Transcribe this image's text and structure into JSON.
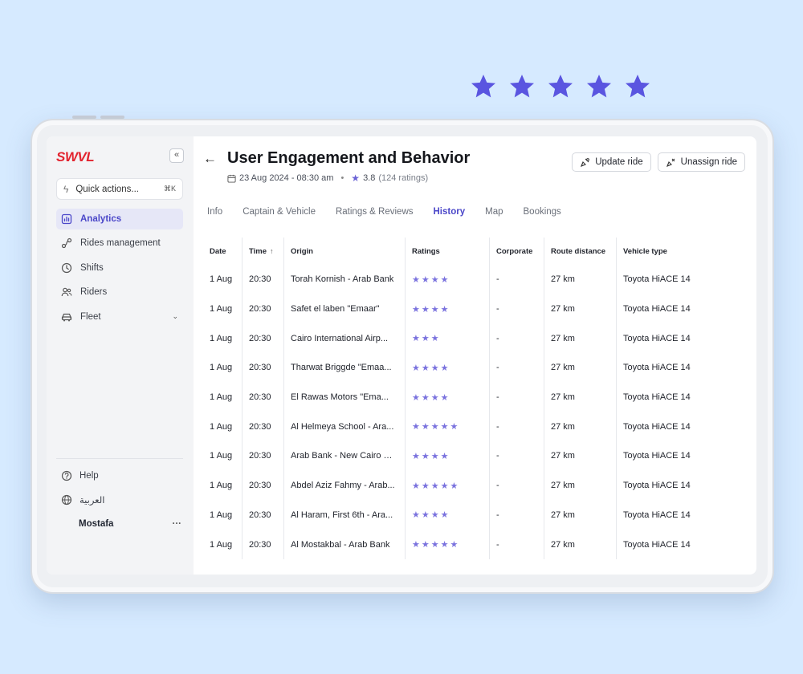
{
  "colors": {
    "accent": "#4b47c9",
    "star": "#6b63d6",
    "brand": "#e2242f",
    "background": "#d6eaff"
  },
  "decor": {
    "star_count": 5
  },
  "sidebar": {
    "logo": "SWVL",
    "quick_actions": {
      "label": "Quick actions...",
      "shortcut": "⌘K"
    },
    "items": [
      {
        "label": "Analytics",
        "icon": "chart-icon",
        "active": true
      },
      {
        "label": "Rides management",
        "icon": "route-icon"
      },
      {
        "label": "Shifts",
        "icon": "clock-icon"
      },
      {
        "label": "Riders",
        "icon": "users-icon"
      },
      {
        "label": "Fleet",
        "icon": "car-icon",
        "expandable": true
      }
    ],
    "help": "Help",
    "language": "العربية",
    "user": "Mostafa",
    "more": "···"
  },
  "header": {
    "title": "User Engagement and Behavior",
    "date": "23 Aug 2024 - 08:30 am",
    "rating": "3.8",
    "rating_count": "(124 ratings)",
    "update_ride": "Update ride",
    "unassign_ride": "Unassign ride"
  },
  "tabs": [
    "Info",
    "Captain & Vehicle",
    "Ratings & Reviews",
    "History",
    "Map",
    "Bookings"
  ],
  "active_tab": "History",
  "table": {
    "columns": [
      "Date",
      "Time",
      "Origin",
      "Ratings",
      "Corporate",
      "Route distance",
      "Vehicle type"
    ],
    "sort_indicator": "↑",
    "rows": [
      {
        "date": "1 Aug",
        "time": "20:30",
        "origin": "Torah Kornish - Arab Bank",
        "rating": 4,
        "corporate": "-",
        "distance": "27 km",
        "vehicle": "Toyota HiACE 14"
      },
      {
        "date": "1 Aug",
        "time": "20:30",
        "origin": "Safet el laben  \"Emaar\"",
        "rating": 4,
        "corporate": "-",
        "distance": "27 km",
        "vehicle": "Toyota HiACE 14"
      },
      {
        "date": "1 Aug",
        "time": "20:30",
        "origin": "Cairo International Airp...",
        "rating": 3,
        "corporate": "-",
        "distance": "27 km",
        "vehicle": "Toyota HiACE 14"
      },
      {
        "date": "1 Aug",
        "time": "20:30",
        "origin": "Tharwat Briggde \"Emaa...",
        "rating": 4,
        "corporate": "-",
        "distance": "27 km",
        "vehicle": "Toyota HiACE 14"
      },
      {
        "date": "1 Aug",
        "time": "20:30",
        "origin": "El Rawas Motors  \"Ema...",
        "rating": 4,
        "corporate": "-",
        "distance": "27 km",
        "vehicle": "Toyota HiACE 14"
      },
      {
        "date": "1 Aug",
        "time": "20:30",
        "origin": "Al Helmeya School - Ara...",
        "rating": 5,
        "corporate": "-",
        "distance": "27 km",
        "vehicle": "Toyota HiACE 14"
      },
      {
        "date": "1 Aug",
        "time": "20:30",
        "origin": "Arab Bank - New Cairo B...",
        "rating": 4,
        "corporate": "-",
        "distance": "27 km",
        "vehicle": "Toyota HiACE 14"
      },
      {
        "date": "1 Aug",
        "time": "20:30",
        "origin": "Abdel Aziz Fahmy - Arab...",
        "rating": 5,
        "corporate": "-",
        "distance": "27 km",
        "vehicle": "Toyota HiACE 14"
      },
      {
        "date": "1 Aug",
        "time": "20:30",
        "origin": "Al Haram, First 6th - Ara...",
        "rating": 4,
        "corporate": "-",
        "distance": "27 km",
        "vehicle": "Toyota HiACE 14"
      },
      {
        "date": "1 Aug",
        "time": "20:30",
        "origin": "Al Mostakbal - Arab Bank",
        "rating": 5,
        "corporate": "-",
        "distance": "27 km",
        "vehicle": "Toyota HiACE 14"
      }
    ]
  }
}
